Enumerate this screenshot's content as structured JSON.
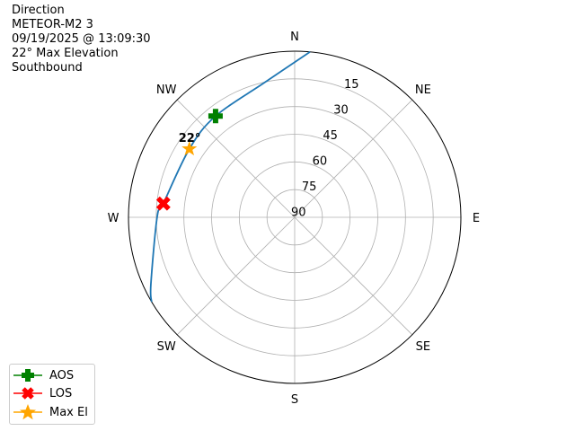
{
  "chart_data": {
    "type": "polar-sky-plot",
    "title_lines": [
      "Direction",
      "METEOR-M2 3",
      "09/19/2025 @ 13:09:30",
      "22° Max Elevation",
      "Southbound"
    ],
    "direction_labels": [
      {
        "label": "N",
        "az": 0
      },
      {
        "label": "NE",
        "az": 45
      },
      {
        "label": "E",
        "az": 90
      },
      {
        "label": "SE",
        "az": 135
      },
      {
        "label": "S",
        "az": 180
      },
      {
        "label": "SW",
        "az": 225
      },
      {
        "label": "W",
        "az": 270
      },
      {
        "label": "NW",
        "az": 315
      }
    ],
    "elevation_ticks": [
      15,
      30,
      45,
      60,
      75,
      90
    ],
    "elevation_range": [
      0,
      90
    ],
    "grid": true,
    "track": {
      "color": "#1f77b4",
      "points": [
        {
          "az": 5.3,
          "el": 0
        },
        {
          "az": 346.8,
          "el": 15.5
        },
        {
          "az": 322,
          "el": 20.4
        },
        {
          "az": 303,
          "el": 22
        },
        {
          "az": 276,
          "el": 18.5
        },
        {
          "az": 270,
          "el": 15.5
        },
        {
          "az": 244.9,
          "el": 4
        },
        {
          "az": 239.4,
          "el": 0
        }
      ]
    },
    "markers": [
      {
        "name": "AOS",
        "az": 322,
        "el": 20.4,
        "color": "#008000",
        "shape": "plus"
      },
      {
        "name": "LOS",
        "az": 276,
        "el": 18.5,
        "color": "#ff0000",
        "shape": "x"
      },
      {
        "name": "Max El",
        "az": 303,
        "el": 22,
        "color": "#ffa500",
        "shape": "star"
      }
    ],
    "annotation": {
      "text": "22°",
      "az": 303,
      "el": 22
    },
    "legend_position": "lower-left"
  }
}
